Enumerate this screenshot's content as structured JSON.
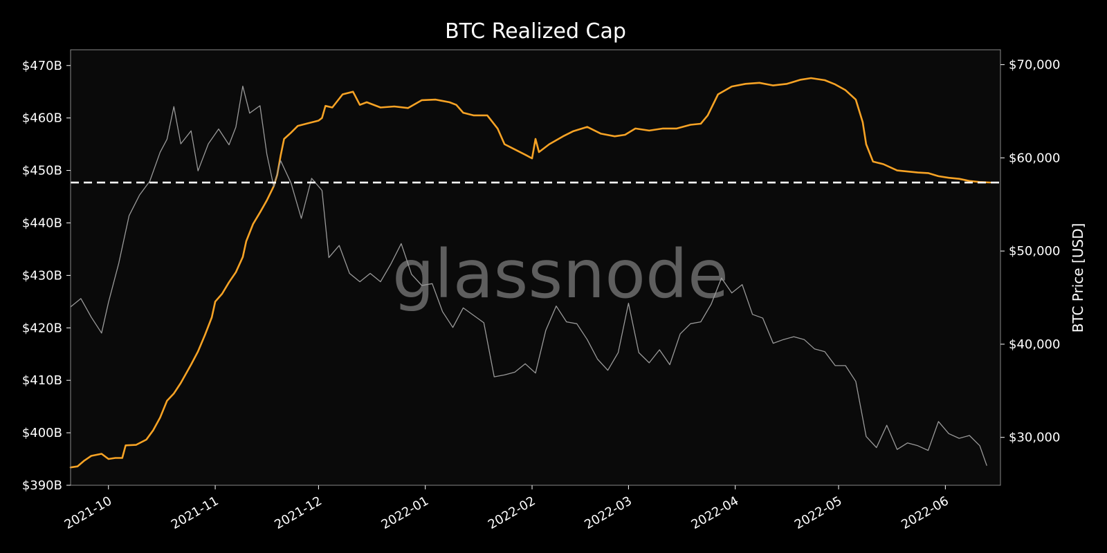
{
  "chart_data": {
    "type": "line",
    "title": "BTC Realized Cap",
    "watermark": "glassnode",
    "y_left": {
      "label": "",
      "range": [
        390,
        473
      ],
      "ticks": [
        390,
        400,
        410,
        420,
        430,
        440,
        450,
        460,
        470
      ],
      "tick_labels": [
        "$390B",
        "$400B",
        "$410B",
        "$420B",
        "$430B",
        "$440B",
        "$450B",
        "$460B",
        "$470B"
      ]
    },
    "y_right": {
      "label": "BTC Price [USD]",
      "range": [
        24860,
        71600
      ],
      "ticks": [
        30000,
        40000,
        50000,
        60000,
        70000
      ],
      "tick_labels": [
        "$30,000",
        "$40,000",
        "$50,000",
        "$60,000",
        "$70,000"
      ]
    },
    "x": {
      "range": [
        "2021-09-20",
        "2022-06-17"
      ],
      "ticks": [
        "2021-10-01",
        "2021-11-01",
        "2021-12-01",
        "2022-01-01",
        "2022-02-01",
        "2022-03-01",
        "2022-04-01",
        "2022-05-01",
        "2022-06-01"
      ],
      "tick_labels": [
        "2021-10",
        "2021-11",
        "2021-12",
        "2022-01",
        "2022-02",
        "2022-03",
        "2022-04",
        "2022-05",
        "2022-06"
      ]
    },
    "reference_line": {
      "axis": "left",
      "value": 447.7,
      "style": "dashed",
      "color": "#ffffff"
    },
    "colors": {
      "realized_cap": "#f7a325",
      "price": "#9a9a9a",
      "background": "#0a0a0a",
      "frame": "#888888"
    },
    "series": [
      {
        "axis": "left",
        "color": "#f7a325",
        "points": [
          [
            "2021-09-20",
            393.4
          ],
          [
            "2021-09-22",
            393.6
          ],
          [
            "2021-09-24",
            394.7
          ],
          [
            "2021-09-26",
            395.6
          ],
          [
            "2021-09-29",
            396.0
          ],
          [
            "2021-10-01",
            395.0
          ],
          [
            "2021-10-03",
            395.2
          ],
          [
            "2021-10-05",
            395.2
          ],
          [
            "2021-10-06",
            397.6
          ],
          [
            "2021-10-09",
            397.7
          ],
          [
            "2021-10-12",
            398.7
          ],
          [
            "2021-10-14",
            400.5
          ],
          [
            "2021-10-16",
            402.9
          ],
          [
            "2021-10-18",
            406.1
          ],
          [
            "2021-10-20",
            407.5
          ],
          [
            "2021-10-22",
            409.5
          ],
          [
            "2021-10-25",
            413.0
          ],
          [
            "2021-10-27",
            415.5
          ],
          [
            "2021-10-29",
            418.6
          ],
          [
            "2021-10-31",
            422.0
          ],
          [
            "2021-11-01",
            425.0
          ],
          [
            "2021-11-03",
            426.5
          ],
          [
            "2021-11-05",
            428.7
          ],
          [
            "2021-11-07",
            430.6
          ],
          [
            "2021-11-09",
            433.5
          ],
          [
            "2021-11-10",
            436.5
          ],
          [
            "2021-11-12",
            439.8
          ],
          [
            "2021-11-14",
            442.0
          ],
          [
            "2021-11-16",
            444.3
          ],
          [
            "2021-11-18",
            447.0
          ],
          [
            "2021-11-19",
            449.2
          ],
          [
            "2021-11-20",
            452.8
          ],
          [
            "2021-11-21",
            456.0
          ],
          [
            "2021-11-23",
            457.2
          ],
          [
            "2021-11-25",
            458.5
          ],
          [
            "2021-11-28",
            459.0
          ],
          [
            "2021-12-01",
            459.5
          ],
          [
            "2021-12-02",
            460.0
          ],
          [
            "2021-12-03",
            462.3
          ],
          [
            "2021-12-05",
            462.0
          ],
          [
            "2021-12-08",
            464.5
          ],
          [
            "2021-12-11",
            465.0
          ],
          [
            "2021-12-13",
            462.5
          ],
          [
            "2021-12-15",
            463.0
          ],
          [
            "2021-12-19",
            462.0
          ],
          [
            "2021-12-23",
            462.2
          ],
          [
            "2021-12-27",
            461.9
          ],
          [
            "2021-12-31",
            463.4
          ],
          [
            "2022-01-04",
            463.5
          ],
          [
            "2022-01-08",
            463.0
          ],
          [
            "2022-01-10",
            462.5
          ],
          [
            "2022-01-12",
            461.0
          ],
          [
            "2022-01-15",
            460.5
          ],
          [
            "2022-01-19",
            460.5
          ],
          [
            "2022-01-22",
            458.0
          ],
          [
            "2022-01-24",
            455.0
          ],
          [
            "2022-01-27",
            454.0
          ],
          [
            "2022-01-30",
            453.0
          ],
          [
            "2022-02-01",
            452.3
          ],
          [
            "2022-02-02",
            456.0
          ],
          [
            "2022-02-03",
            453.5
          ],
          [
            "2022-02-06",
            455.0
          ],
          [
            "2022-02-10",
            456.5
          ],
          [
            "2022-02-13",
            457.5
          ],
          [
            "2022-02-17",
            458.3
          ],
          [
            "2022-02-21",
            457.0
          ],
          [
            "2022-02-25",
            456.5
          ],
          [
            "2022-02-28",
            456.8
          ],
          [
            "2022-03-03",
            458.0
          ],
          [
            "2022-03-07",
            457.6
          ],
          [
            "2022-03-11",
            458.0
          ],
          [
            "2022-03-15",
            458.0
          ],
          [
            "2022-03-19",
            458.7
          ],
          [
            "2022-03-22",
            458.9
          ],
          [
            "2022-03-24",
            460.5
          ],
          [
            "2022-03-27",
            464.5
          ],
          [
            "2022-03-31",
            466.0
          ],
          [
            "2022-04-04",
            466.5
          ],
          [
            "2022-04-08",
            466.7
          ],
          [
            "2022-04-12",
            466.2
          ],
          [
            "2022-04-16",
            466.5
          ],
          [
            "2022-04-20",
            467.3
          ],
          [
            "2022-04-23",
            467.6
          ],
          [
            "2022-04-27",
            467.2
          ],
          [
            "2022-04-30",
            466.4
          ],
          [
            "2022-05-03",
            465.3
          ],
          [
            "2022-05-06",
            463.5
          ],
          [
            "2022-05-08",
            459.2
          ],
          [
            "2022-05-09",
            455.0
          ],
          [
            "2022-05-11",
            451.7
          ],
          [
            "2022-05-14",
            451.2
          ],
          [
            "2022-05-18",
            450.0
          ],
          [
            "2022-05-21",
            449.8
          ],
          [
            "2022-05-24",
            449.6
          ],
          [
            "2022-05-27",
            449.5
          ],
          [
            "2022-05-30",
            448.9
          ],
          [
            "2022-06-02",
            448.6
          ],
          [
            "2022-06-05",
            448.4
          ],
          [
            "2022-06-08",
            448.0
          ],
          [
            "2022-06-11",
            447.8
          ],
          [
            "2022-06-14",
            447.7
          ]
        ]
      },
      {
        "axis": "right",
        "color": "#9a9a9a",
        "points": [
          [
            "2021-09-20",
            44000
          ],
          [
            "2021-09-23",
            44900
          ],
          [
            "2021-09-26",
            42900
          ],
          [
            "2021-09-29",
            41200
          ],
          [
            "2021-10-01",
            44500
          ],
          [
            "2021-10-04",
            48700
          ],
          [
            "2021-10-07",
            53800
          ],
          [
            "2021-10-10",
            56000
          ],
          [
            "2021-10-13",
            57500
          ],
          [
            "2021-10-16",
            60600
          ],
          [
            "2021-10-18",
            62000
          ],
          [
            "2021-10-20",
            65500
          ],
          [
            "2021-10-22",
            61500
          ],
          [
            "2021-10-25",
            62900
          ],
          [
            "2021-10-27",
            58600
          ],
          [
            "2021-10-30",
            61500
          ],
          [
            "2021-11-02",
            63100
          ],
          [
            "2021-11-05",
            61400
          ],
          [
            "2021-11-07",
            63300
          ],
          [
            "2021-11-09",
            67700
          ],
          [
            "2021-11-11",
            64800
          ],
          [
            "2021-11-14",
            65600
          ],
          [
            "2021-11-16",
            60400
          ],
          [
            "2021-11-18",
            56900
          ],
          [
            "2021-11-20",
            59700
          ],
          [
            "2021-11-23",
            57300
          ],
          [
            "2021-11-26",
            53500
          ],
          [
            "2021-11-29",
            57800
          ],
          [
            "2021-12-02",
            56500
          ],
          [
            "2021-12-04",
            49300
          ],
          [
            "2021-12-07",
            50600
          ],
          [
            "2021-12-10",
            47600
          ],
          [
            "2021-12-13",
            46700
          ],
          [
            "2021-12-16",
            47600
          ],
          [
            "2021-12-19",
            46700
          ],
          [
            "2021-12-22",
            48600
          ],
          [
            "2021-12-25",
            50800
          ],
          [
            "2021-12-28",
            47500
          ],
          [
            "2021-12-31",
            46300
          ],
          [
            "2022-01-03",
            46500
          ],
          [
            "2022-01-06",
            43500
          ],
          [
            "2022-01-09",
            41800
          ],
          [
            "2022-01-12",
            43900
          ],
          [
            "2022-01-15",
            43100
          ],
          [
            "2022-01-18",
            42300
          ],
          [
            "2022-01-21",
            36500
          ],
          [
            "2022-01-24",
            36700
          ],
          [
            "2022-01-27",
            37000
          ],
          [
            "2022-01-30",
            37900
          ],
          [
            "2022-02-02",
            36900
          ],
          [
            "2022-02-05",
            41500
          ],
          [
            "2022-02-08",
            44100
          ],
          [
            "2022-02-11",
            42400
          ],
          [
            "2022-02-14",
            42200
          ],
          [
            "2022-02-17",
            40500
          ],
          [
            "2022-02-20",
            38400
          ],
          [
            "2022-02-23",
            37200
          ],
          [
            "2022-02-26",
            39100
          ],
          [
            "2022-03-01",
            44400
          ],
          [
            "2022-03-04",
            39100
          ],
          [
            "2022-03-07",
            38000
          ],
          [
            "2022-03-10",
            39400
          ],
          [
            "2022-03-13",
            37800
          ],
          [
            "2022-03-16",
            41100
          ],
          [
            "2022-03-19",
            42200
          ],
          [
            "2022-03-22",
            42400
          ],
          [
            "2022-03-25",
            44300
          ],
          [
            "2022-03-28",
            47100
          ],
          [
            "2022-03-31",
            45500
          ],
          [
            "2022-04-03",
            46400
          ],
          [
            "2022-04-06",
            43200
          ],
          [
            "2022-04-09",
            42800
          ],
          [
            "2022-04-12",
            40100
          ],
          [
            "2022-04-15",
            40500
          ],
          [
            "2022-04-18",
            40800
          ],
          [
            "2022-04-21",
            40500
          ],
          [
            "2022-04-24",
            39500
          ],
          [
            "2022-04-27",
            39200
          ],
          [
            "2022-04-30",
            37700
          ],
          [
            "2022-05-03",
            37700
          ],
          [
            "2022-05-06",
            36000
          ],
          [
            "2022-05-09",
            30100
          ],
          [
            "2022-05-12",
            28900
          ],
          [
            "2022-05-15",
            31300
          ],
          [
            "2022-05-18",
            28700
          ],
          [
            "2022-05-21",
            29400
          ],
          [
            "2022-05-24",
            29100
          ],
          [
            "2022-05-27",
            28600
          ],
          [
            "2022-05-30",
            31700
          ],
          [
            "2022-06-02",
            30400
          ],
          [
            "2022-06-05",
            29900
          ],
          [
            "2022-06-08",
            30200
          ],
          [
            "2022-06-11",
            29100
          ],
          [
            "2022-06-13",
            27000
          ]
        ]
      }
    ]
  }
}
